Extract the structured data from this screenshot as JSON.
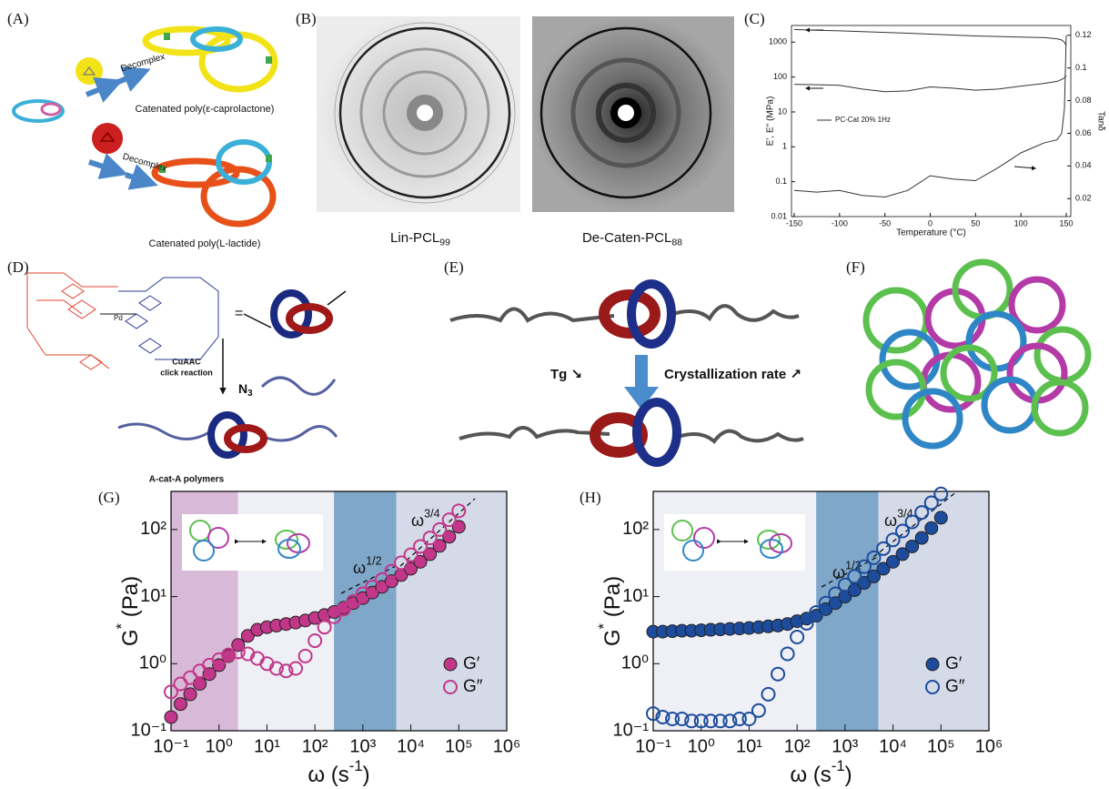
{
  "panel_labels": [
    "(A)",
    "(B)",
    "(C)",
    "(D)",
    "(E)",
    "(F)",
    "(G)",
    "(H)"
  ],
  "panel_a": {
    "decomplex_top": "Decomplex",
    "decomplex_bottom": "Decomplex",
    "caption_top": "Catenated poly(ε-caprolactone)",
    "caption_bottom": "Catenated poly(L-lactide)"
  },
  "panel_b": {
    "captions": [
      {
        "base": "Lin-PCL",
        "sub": "99"
      },
      {
        "base": "De-Caten-PCL",
        "sub": "88"
      }
    ]
  },
  "panel_d": {
    "equals": "=",
    "reaction": [
      "CuAAC",
      "click reaction"
    ],
    "azide": {
      "base": "N",
      "sub": "3"
    },
    "product": "A-cat-A polymers"
  },
  "panel_e": {
    "left": "Tg ↘",
    "right": "Crystallization rate ↗"
  },
  "chart_data": [
    {
      "type": "line",
      "xlabel": "Temperature (°C)",
      "ylabel": "E', E'' (MPa)",
      "y2label": "Tanδ",
      "legend_text": "PC-Cat 20% 1Hz",
      "log_y": true,
      "xlim": [
        -153,
        155
      ],
      "ylim": [
        0.01,
        3000
      ],
      "y2lim": [
        0.009,
        0.126
      ],
      "xticks": [
        -150,
        -100,
        -50,
        0,
        50,
        100,
        150
      ],
      "yticks": [
        0.01,
        0.1,
        1,
        10,
        100,
        1000
      ],
      "y2ticks": [
        0.02,
        0.04,
        0.06,
        0.08,
        0.1,
        0.12
      ],
      "x": [
        -150,
        -125,
        -100,
        -75,
        -50,
        -25,
        0,
        25,
        50,
        75,
        100,
        125,
        140,
        145,
        148,
        150
      ],
      "series": [
        {
          "color": "#333333",
          "values": [
            2300,
            2200,
            2100,
            2000,
            1900,
            1800,
            1700,
            1600,
            1500,
            1450,
            1400,
            1350,
            1250,
            1150,
            1000,
            800
          ]
        },
        {
          "color": "#333333",
          "values": [
            62,
            60,
            58,
            45,
            38,
            40,
            52,
            48,
            42,
            45,
            55,
            65,
            75,
            85,
            95,
            110
          ]
        },
        {
          "color": "#333333",
          "axis": "y2",
          "values": [
            0.025,
            0.024,
            0.025,
            0.022,
            0.021,
            0.025,
            0.034,
            0.032,
            0.031,
            0.039,
            0.048,
            0.054,
            0.056,
            0.06,
            0.075,
            0.12
          ]
        }
      ]
    },
    {
      "type": "scatter",
      "xlabel": {
        "base": "ω (s",
        "sup": "-1",
        "tail": ")"
      },
      "ylabel": {
        "base": "G",
        "sup": "*",
        "tail": " (Pa)"
      },
      "log_x": true,
      "log_y": true,
      "xlim": [
        0.1,
        1000000
      ],
      "ylim": [
        0.1,
        370
      ],
      "legend": "lower right",
      "xticks": [
        {
          "value": 0.1,
          "label": "10⁻¹"
        },
        {
          "value": 1,
          "label": "10⁰"
        },
        {
          "value": 10,
          "label": "10¹"
        },
        {
          "value": 100,
          "label": "10²"
        },
        {
          "value": 1000,
          "label": "10³"
        },
        {
          "value": 10000,
          "label": "10⁴"
        },
        {
          "value": 100000,
          "label": "10⁵"
        },
        {
          "value": 1000000,
          "label": "10⁶"
        }
      ],
      "yticks": [
        {
          "value": 0.1,
          "label": "10⁻¹"
        },
        {
          "value": 1,
          "label": "10⁰"
        },
        {
          "value": 10,
          "label": "10¹"
        },
        {
          "value": 100,
          "label": "10²"
        }
      ],
      "bands": [
        {
          "x": [
            0.1,
            2.5
          ],
          "color": "#d8b9d7"
        },
        {
          "x": [
            2.5,
            250
          ],
          "color": "#eef0f6"
        },
        {
          "x": [
            250,
            5000
          ],
          "color": "#7fa7ca"
        },
        {
          "x": [
            5000,
            1000000
          ],
          "color": "#d4dae7"
        }
      ],
      "annotations": [
        {
          "base": "ω",
          "sup": "1/2"
        },
        {
          "base": "ω",
          "sup": "3/4"
        }
      ],
      "x": [
        0.1,
        0.158,
        0.251,
        0.398,
        0.631,
        1,
        1.58,
        2.51,
        3.98,
        6.31,
        10,
        15.8,
        25.1,
        39.8,
        63.1,
        100,
        158,
        251,
        398,
        631,
        1000,
        1580,
        2510,
        3980,
        6310,
        10000,
        15800,
        25100,
        39800,
        63100,
        100000
      ],
      "series": [
        {
          "name": "G′",
          "color": "#c2378a",
          "marker": "filled",
          "values": [
            0.16,
            0.25,
            0.35,
            0.5,
            0.7,
            0.95,
            1.3,
            1.9,
            2.6,
            3.2,
            3.5,
            3.7,
            3.9,
            4.1,
            4.4,
            4.8,
            5.3,
            5.9,
            6.8,
            8,
            9.5,
            11.5,
            14,
            17,
            21,
            26,
            33,
            43,
            57,
            78,
            110
          ]
        },
        {
          "name": "G″",
          "color": "#c2378a",
          "marker": "open",
          "values": [
            0.38,
            0.5,
            0.62,
            0.78,
            0.95,
            1.15,
            1.35,
            1.5,
            1.4,
            1.2,
            1,
            0.85,
            0.78,
            0.85,
            1.3,
            2.2,
            3.5,
            5,
            6.5,
            8.5,
            11,
            14,
            18,
            24,
            32,
            42,
            56,
            75,
            100,
            140,
            190
          ]
        }
      ]
    },
    {
      "type": "scatter",
      "xlabel": {
        "base": "ω (s",
        "sup": "-1",
        "tail": ")"
      },
      "ylabel": {
        "base": "G",
        "sup": "*",
        "tail": " (Pa)"
      },
      "log_x": true,
      "log_y": true,
      "xlim": [
        0.1,
        1000000
      ],
      "ylim": [
        0.1,
        370
      ],
      "legend": "lower right",
      "xticks": [
        {
          "value": 0.1,
          "label": "10⁻¹"
        },
        {
          "value": 1,
          "label": "10⁰"
        },
        {
          "value": 10,
          "label": "10¹"
        },
        {
          "value": 100,
          "label": "10²"
        },
        {
          "value": 1000,
          "label": "10³"
        },
        {
          "value": 10000,
          "label": "10⁴"
        },
        {
          "value": 100000,
          "label": "10⁵"
        },
        {
          "value": 1000000,
          "label": "10⁶"
        }
      ],
      "yticks": [
        {
          "value": 0.1,
          "label": "10⁻¹"
        },
        {
          "value": 1,
          "label": "10⁰"
        },
        {
          "value": 10,
          "label": "10¹"
        },
        {
          "value": 100,
          "label": "10²"
        }
      ],
      "bands": [
        {
          "x": [
            0.1,
            250
          ],
          "color": "#eef0f6"
        },
        {
          "x": [
            250,
            5000
          ],
          "color": "#7fa7ca"
        },
        {
          "x": [
            5000,
            1000000
          ],
          "color": "#d4dae7"
        }
      ],
      "annotations": [
        {
          "base": "ω",
          "sup": "1/2"
        },
        {
          "base": "ω",
          "sup": "3/4"
        }
      ],
      "x": [
        0.1,
        0.158,
        0.251,
        0.398,
        0.631,
        1,
        1.58,
        2.51,
        3.98,
        6.31,
        10,
        15.8,
        25.1,
        39.8,
        63.1,
        100,
        158,
        251,
        398,
        631,
        1000,
        1580,
        2510,
        3980,
        6310,
        10000,
        15800,
        25100,
        39800,
        63100,
        100000
      ],
      "series": [
        {
          "name": "G′",
          "color": "#1d4c9c",
          "marker": "filled",
          "values": [
            3,
            3,
            3.05,
            3.1,
            3.1,
            3.15,
            3.2,
            3.25,
            3.3,
            3.35,
            3.4,
            3.5,
            3.6,
            3.7,
            3.9,
            4.3,
            4.7,
            5.2,
            6.5,
            8,
            10,
            12.5,
            16,
            20,
            26,
            33,
            43,
            56,
            75,
            105,
            150
          ]
        },
        {
          "name": "G″",
          "color": "#1d4c9c",
          "marker": "open",
          "values": [
            0.18,
            0.16,
            0.15,
            0.15,
            0.14,
            0.14,
            0.14,
            0.14,
            0.14,
            0.15,
            0.15,
            0.2,
            0.35,
            0.7,
            1.4,
            2.5,
            4,
            5.8,
            8,
            11,
            15,
            20,
            28,
            38,
            52,
            70,
            95,
            130,
            180,
            250,
            340
          ]
        }
      ]
    }
  ]
}
